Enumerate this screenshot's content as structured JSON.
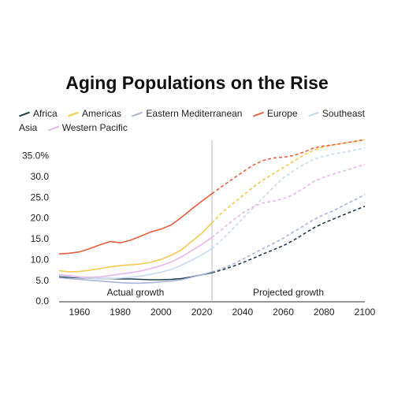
{
  "chart_data": {
    "type": "line",
    "title": "Aging Populations on the Rise",
    "x": [
      1950,
      1955,
      1960,
      1965,
      1970,
      1975,
      1980,
      1985,
      1990,
      1995,
      2000,
      2005,
      2010,
      2015,
      2020,
      2025,
      2030,
      2035,
      2040,
      2045,
      2050,
      2055,
      2060,
      2065,
      2070,
      2075,
      2080,
      2085,
      2090,
      2095,
      2100
    ],
    "xlim": [
      1950,
      2100
    ],
    "xticks": [
      1960,
      1980,
      2000,
      2020,
      2040,
      2060,
      2080,
      2100
    ],
    "ylim": [
      0,
      40
    ],
    "yticks": [
      {
        "value": 0,
        "label": "0.0"
      },
      {
        "value": 5,
        "label": "5.0"
      },
      {
        "value": 10,
        "label": "10.0"
      },
      {
        "value": 15,
        "label": "15.0"
      },
      {
        "value": 20,
        "label": "20.0"
      },
      {
        "value": 25,
        "label": "25.0"
      },
      {
        "value": 30,
        "label": "30.0"
      },
      {
        "value": 35,
        "label": "35.0%"
      }
    ],
    "projection_start": 2025,
    "annotations": [
      "Actual growth",
      "Projected growth"
    ],
    "series": [
      {
        "name": "Africa",
        "color": "#1f3b4d",
        "values": [
          6.0,
          5.9,
          5.8,
          5.7,
          5.6,
          5.6,
          5.5,
          5.5,
          5.4,
          5.3,
          5.3,
          5.4,
          5.6,
          6.0,
          6.5,
          7.0,
          7.7,
          8.5,
          9.4,
          10.4,
          11.5,
          12.5,
          13.5,
          14.8,
          16.3,
          17.8,
          19.0,
          20.0,
          21.0,
          22.0,
          23.0
        ]
      },
      {
        "name": "Americas",
        "color": "#f2c94c",
        "values": [
          7.5,
          7.2,
          7.3,
          7.6,
          8.0,
          8.4,
          8.7,
          8.9,
          9.1,
          9.5,
          10.2,
          11.2,
          12.5,
          14.5,
          16.5,
          19.0,
          21.5,
          23.5,
          25.5,
          27.5,
          29.3,
          30.8,
          32.3,
          33.8,
          35.3,
          36.5,
          37.3,
          37.8,
          38.2,
          38.6,
          39.0
        ]
      },
      {
        "name": "Eastern Mediterranean",
        "color": "#a9b4d6",
        "values": [
          5.8,
          5.6,
          5.4,
          5.2,
          5.0,
          4.8,
          4.6,
          4.5,
          4.5,
          4.6,
          4.8,
          5.0,
          5.3,
          5.9,
          6.5,
          7.2,
          8.0,
          9.0,
          10.2,
          11.5,
          12.8,
          14.0,
          15.3,
          16.8,
          18.3,
          19.8,
          21.0,
          22.0,
          23.3,
          24.5,
          25.8
        ]
      },
      {
        "name": "Europe",
        "color": "#e8603c",
        "values": [
          11.5,
          11.7,
          12.0,
          12.8,
          13.7,
          14.5,
          14.2,
          14.8,
          15.8,
          16.8,
          17.5,
          18.5,
          20.3,
          22.3,
          24.2,
          26.0,
          27.8,
          29.5,
          31.2,
          32.8,
          34.0,
          34.6,
          34.8,
          35.2,
          36.0,
          37.0,
          37.5,
          37.8,
          38.2,
          38.6,
          39.0
        ]
      },
      {
        "name": "Southeast Asia",
        "color": "#c6dbef",
        "values": [
          6.3,
          6.1,
          5.9,
          5.7,
          5.6,
          5.6,
          5.7,
          5.9,
          6.2,
          6.6,
          7.1,
          7.8,
          8.8,
          10.0,
          11.3,
          12.8,
          15.0,
          17.5,
          20.0,
          22.5,
          25.0,
          27.5,
          29.8,
          31.5,
          33.0,
          34.3,
          35.0,
          35.6,
          36.0,
          36.5,
          37.0
        ]
      },
      {
        "name": "Western Pacific",
        "color": "#e4b8e8",
        "values": [
          6.5,
          6.3,
          6.0,
          5.9,
          6.0,
          6.3,
          6.7,
          7.0,
          7.4,
          8.0,
          8.7,
          9.6,
          10.8,
          12.3,
          13.8,
          15.5,
          17.5,
          19.5,
          21.3,
          22.8,
          23.8,
          24.2,
          24.8,
          25.8,
          27.3,
          29.0,
          30.0,
          30.8,
          31.5,
          32.3,
          33.0
        ]
      }
    ]
  }
}
